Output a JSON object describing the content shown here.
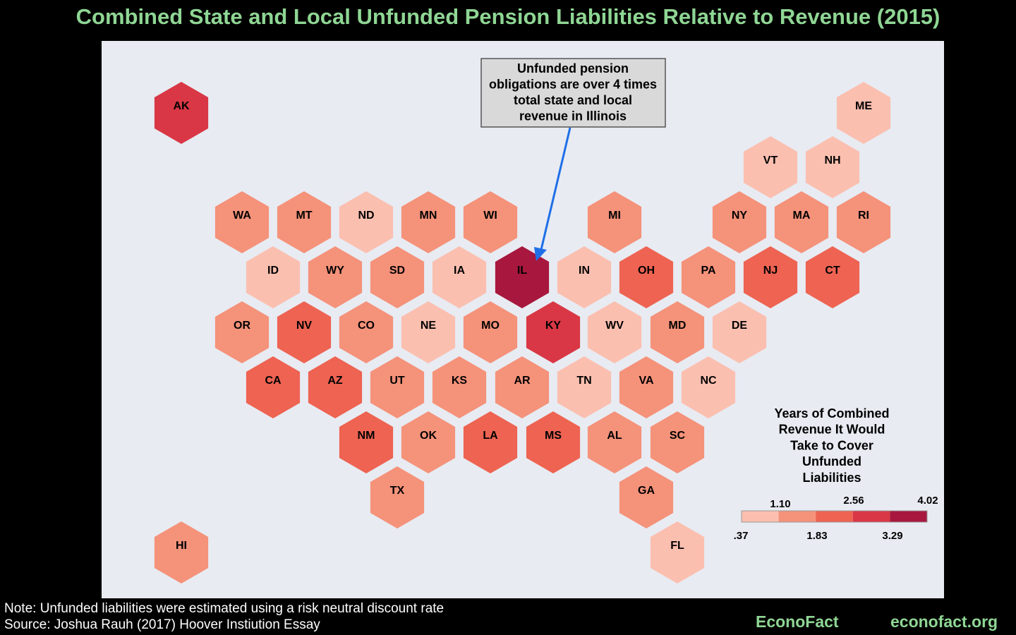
{
  "title": "Combined State and Local Unfunded Pension Liabilities Relative to Revenue (2015)",
  "footer": {
    "note": "Note: Unfunded liabilities were estimated using a risk neutral discount rate",
    "source": "Source: Joshua Rauh (2017) Hoover Instiution Essay",
    "brand_left": "EconoFact",
    "brand_right": "econofact.org"
  },
  "colors": {
    "background": "#000000",
    "panel": "#e8ebf2",
    "title_green": "#8fd694",
    "arrow": "#1f6fe8",
    "callout_fill": "#d9d9d9"
  },
  "chart_data": {
    "type": "hex-tile-map",
    "title": "Combined State and Local Unfunded Pension Liabilities Relative to Revenue (2015)",
    "callout": {
      "text_lines": [
        "Unfunded pension",
        "obligations are over 4 times",
        "total state and local",
        "revenue in Illinois"
      ],
      "points_to": "IL"
    },
    "legend": {
      "title_lines": [
        "Years of Combined",
        "Revenue It Would",
        "Take to Cover",
        "Unfunded",
        "Liabilities"
      ],
      "ticks_top": [
        "1.10",
        "2.56",
        "4.02"
      ],
      "ticks_bottom": [
        ".37",
        "1.83",
        "3.29"
      ],
      "colors": [
        "#fbbfb0",
        "#f5927a",
        "#ee6352",
        "#d93745",
        "#a8173d"
      ]
    },
    "states": [
      {
        "code": "AK",
        "bin": 3
      },
      {
        "code": "ME",
        "bin": 0
      },
      {
        "code": "VT",
        "bin": 0
      },
      {
        "code": "NH",
        "bin": 0
      },
      {
        "code": "WA",
        "bin": 1
      },
      {
        "code": "MT",
        "bin": 1
      },
      {
        "code": "ND",
        "bin": 0
      },
      {
        "code": "MN",
        "bin": 1
      },
      {
        "code": "WI",
        "bin": 1
      },
      {
        "code": "MI",
        "bin": 1
      },
      {
        "code": "NY",
        "bin": 1
      },
      {
        "code": "MA",
        "bin": 1
      },
      {
        "code": "RI",
        "bin": 1
      },
      {
        "code": "ID",
        "bin": 0
      },
      {
        "code": "WY",
        "bin": 1
      },
      {
        "code": "SD",
        "bin": 1
      },
      {
        "code": "IA",
        "bin": 0
      },
      {
        "code": "IL",
        "bin": 4
      },
      {
        "code": "IN",
        "bin": 0
      },
      {
        "code": "OH",
        "bin": 2
      },
      {
        "code": "PA",
        "bin": 1
      },
      {
        "code": "NJ",
        "bin": 2
      },
      {
        "code": "CT",
        "bin": 2
      },
      {
        "code": "OR",
        "bin": 1
      },
      {
        "code": "NV",
        "bin": 2
      },
      {
        "code": "CO",
        "bin": 1
      },
      {
        "code": "NE",
        "bin": 0
      },
      {
        "code": "MO",
        "bin": 1
      },
      {
        "code": "KY",
        "bin": 3
      },
      {
        "code": "WV",
        "bin": 0
      },
      {
        "code": "MD",
        "bin": 1
      },
      {
        "code": "DE",
        "bin": 0
      },
      {
        "code": "CA",
        "bin": 2
      },
      {
        "code": "AZ",
        "bin": 2
      },
      {
        "code": "UT",
        "bin": 1
      },
      {
        "code": "KS",
        "bin": 1
      },
      {
        "code": "AR",
        "bin": 1
      },
      {
        "code": "TN",
        "bin": 0
      },
      {
        "code": "VA",
        "bin": 1
      },
      {
        "code": "NC",
        "bin": 0
      },
      {
        "code": "NM",
        "bin": 2
      },
      {
        "code": "OK",
        "bin": 1
      },
      {
        "code": "LA",
        "bin": 2
      },
      {
        "code": "MS",
        "bin": 2
      },
      {
        "code": "AL",
        "bin": 1
      },
      {
        "code": "SC",
        "bin": 1
      },
      {
        "code": "TX",
        "bin": 1
      },
      {
        "code": "GA",
        "bin": 1
      },
      {
        "code": "HI",
        "bin": 1
      },
      {
        "code": "FL",
        "bin": 0
      }
    ]
  }
}
